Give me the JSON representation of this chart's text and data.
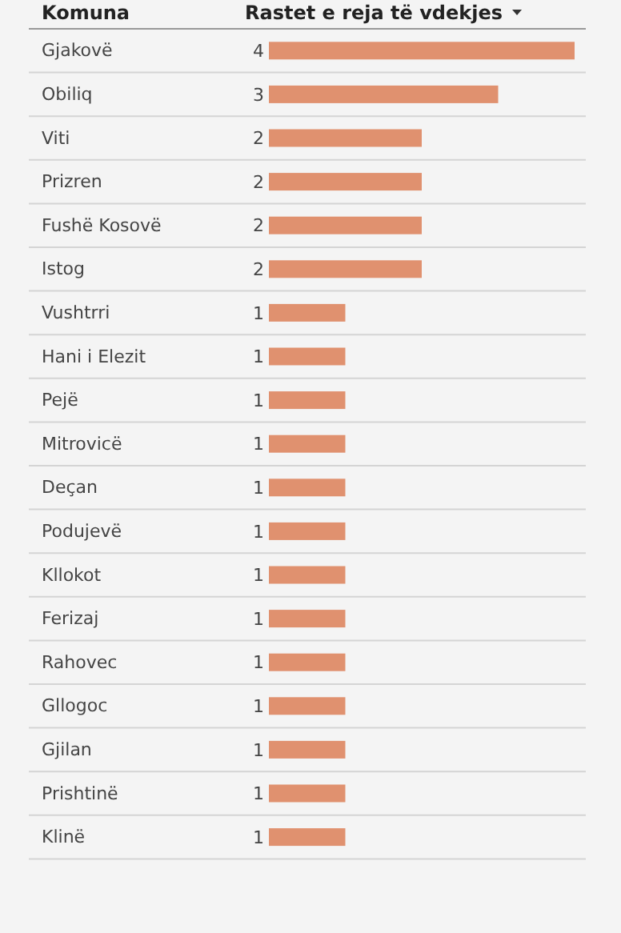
{
  "chart_data": {
    "type": "bar",
    "orientation": "horizontal",
    "ylabel": "Komuna",
    "xlabel": "Rastet e reja të vdekjes",
    "categories": [
      "Gjakovë",
      "Obiliq",
      "Viti",
      "Prizren",
      "Fushë Kosovë",
      "Istog",
      "Vushtrri",
      "Hani i Elezit",
      "Pejë",
      "Mitrovicë",
      "Deçan",
      "Podujevë",
      "Kllokot",
      "Ferizaj",
      "Rahovec",
      "Gllogoc",
      "Gjilan",
      "Prishtinë",
      "Klinë"
    ],
    "values": [
      4,
      3,
      2,
      2,
      2,
      2,
      1,
      1,
      1,
      1,
      1,
      1,
      1,
      1,
      1,
      1,
      1,
      1,
      1
    ],
    "color": "#e0916f",
    "xlim": [
      0,
      4
    ],
    "data_labels": true,
    "tick_labels": "y",
    "grid": "y"
  }
}
